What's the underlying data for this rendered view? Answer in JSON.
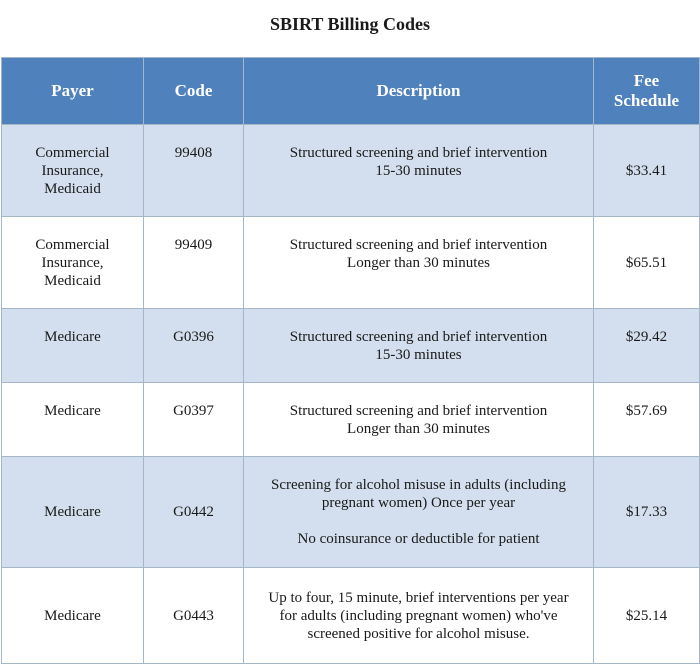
{
  "title": "SBIRT Billing Codes",
  "columns": [
    "Payer",
    "Code",
    "Description",
    "Fee Schedule"
  ],
  "rows": [
    {
      "payer": [
        "Commercial",
        "Insurance,",
        "Medicaid"
      ],
      "code": "99408",
      "description": [
        "Structured screening and brief intervention",
        "15-30 minutes"
      ],
      "fee": "$33.41"
    },
    {
      "payer": [
        "Commercial",
        "Insurance,",
        "Medicaid"
      ],
      "code": "99409",
      "description": [
        "Structured screening and brief intervention",
        "Longer than 30 minutes"
      ],
      "fee": "$65.51"
    },
    {
      "payer": [
        "Medicare"
      ],
      "code": "G0396",
      "description": [
        "Structured screening and brief intervention",
        "15-30 minutes"
      ],
      "fee": "$29.42"
    },
    {
      "payer": [
        "Medicare"
      ],
      "code": "G0397",
      "description": [
        "Structured screening and brief intervention",
        "Longer than 30 minutes"
      ],
      "fee": "$57.69"
    },
    {
      "payer": [
        "Medicare"
      ],
      "code": "G0442",
      "description": [
        "Screening for alcohol misuse in adults (including",
        "pregnant women) Once per year",
        "",
        "No coinsurance or deductible for patient"
      ],
      "fee": "$17.33"
    },
    {
      "payer": [
        "Medicare"
      ],
      "code": "G0443",
      "description": [
        "Up to four, 15 minute, brief interventions per year",
        "for adults (including pregnant women) who've",
        "screened positive for alcohol misuse."
      ],
      "fee": "$25.14"
    }
  ]
}
